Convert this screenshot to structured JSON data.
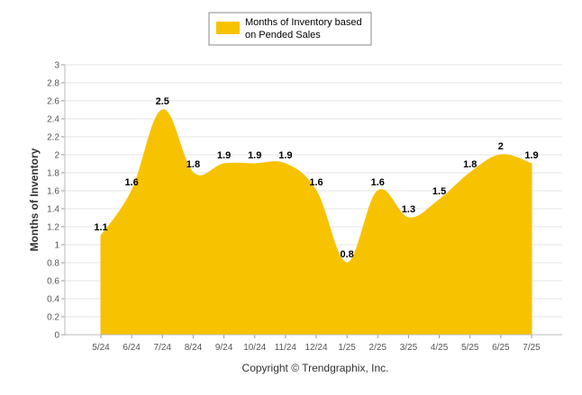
{
  "chart_data": {
    "type": "area",
    "categories": [
      "5/24",
      "6/24",
      "7/24",
      "8/24",
      "9/24",
      "10/24",
      "11/24",
      "12/24",
      "1/25",
      "2/25",
      "3/25",
      "4/25",
      "5/25",
      "6/25",
      "7/25"
    ],
    "series": [
      {
        "name": "Months of Inventory based on Pended Sales",
        "values": [
          1.1,
          1.6,
          2.5,
          1.8,
          1.9,
          1.9,
          1.9,
          1.6,
          0.8,
          1.6,
          1.3,
          1.5,
          1.8,
          2,
          1.9
        ],
        "labels": [
          "1.1",
          "1.6",
          "2.5",
          "1.8",
          "1.9",
          "1.9",
          "1.9",
          "1.6",
          "0.8",
          "1.6",
          "1.3",
          "1.5",
          "1.8",
          "2",
          "1.9"
        ],
        "color": "#F7C200"
      }
    ],
    "legend": {
      "line1": "Months of Inventory based",
      "line2": "on Pended Sales",
      "placement": "top-center"
    },
    "ylabel": "Months of Inventory",
    "ylim": [
      0,
      3
    ],
    "yticks": [
      "0",
      "0.2",
      "0.4",
      "0.6",
      "0.8",
      "1",
      "1.2",
      "1.4",
      "1.6",
      "1.8",
      "2",
      "2.2",
      "2.4",
      "2.6",
      "2.8",
      "3"
    ],
    "grid": true,
    "footer": "Copyright © Trendgraphix, Inc."
  }
}
